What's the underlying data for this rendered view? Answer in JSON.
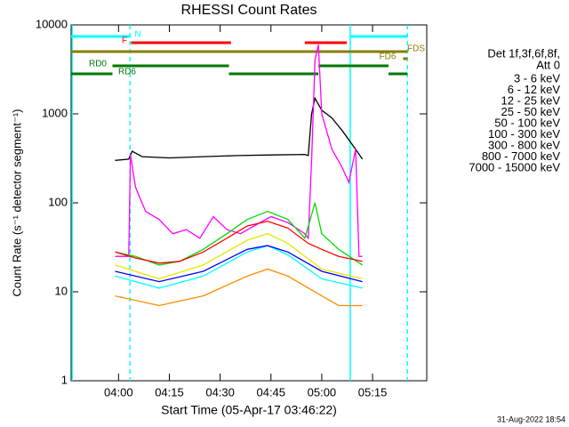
{
  "chart_data": {
    "type": "line",
    "title": "RHESSI Count Rates",
    "x_label": "Start Time (05-Apr-17 03:46:22)",
    "y_label": "Count Rate (s⁻¹ detector segment⁻¹)",
    "legend_title": [
      "Det 1f,3f,6f,8f,",
      "Att 0"
    ],
    "footer": "31-Aug-2022 18:54",
    "xlim": [
      226,
      331
    ],
    "xticks": [
      {
        "value": 240,
        "label": "04:00"
      },
      {
        "value": 255,
        "label": "04:15"
      },
      {
        "value": 270,
        "label": "04:30"
      },
      {
        "value": 285,
        "label": "04:45"
      },
      {
        "value": 300,
        "label": "05:00"
      },
      {
        "value": 315,
        "label": "05:15"
      }
    ],
    "ylim": [
      1,
      10000
    ],
    "yticks": [
      1,
      10,
      100,
      1000,
      10000
    ],
    "log_y": true,
    "series": [
      {
        "name": "3 - 6 keV",
        "color": "#000000",
        "x": [
          239,
          243,
          244,
          247,
          255,
          265,
          275,
          285,
          295,
          296,
          297,
          298,
          300,
          303,
          306,
          310,
          312
        ],
        "values": [
          300,
          310,
          380,
          330,
          320,
          330,
          340,
          345,
          350,
          340,
          1000,
          1500,
          1100,
          900,
          650,
          400,
          310
        ]
      },
      {
        "name": "6 - 12 keV",
        "color": "#ff00ff",
        "x": [
          239,
          243,
          243.5,
          245,
          248,
          252,
          256,
          260,
          264,
          268,
          272,
          276,
          280,
          285,
          290,
          295,
          296,
          297,
          298,
          299,
          300,
          303,
          306,
          308,
          310,
          311,
          312
        ],
        "values": [
          25,
          25,
          350,
          150,
          80,
          65,
          45,
          50,
          40,
          70,
          50,
          45,
          55,
          70,
          60,
          45,
          40,
          300,
          4000,
          6000,
          1000,
          400,
          250,
          170,
          400,
          25,
          25
        ]
      },
      {
        "name": "12 - 25 keV",
        "color": "#00dd00",
        "x": [
          239,
          245,
          252,
          258,
          265,
          272,
          278,
          284,
          290,
          295,
          298,
          300,
          305,
          312
        ],
        "values": [
          28,
          25,
          20,
          22,
          30,
          45,
          65,
          80,
          65,
          40,
          100,
          45,
          30,
          20
        ]
      },
      {
        "name": "25 - 50 keV",
        "color": "#00ffff",
        "x": [
          239,
          252,
          265,
          278,
          284,
          290,
          300,
          312
        ],
        "values": [
          15,
          11,
          15,
          28,
          33,
          26,
          14,
          11
        ]
      },
      {
        "name": "50 - 100 keV",
        "color": "#e6e600",
        "x": [
          239,
          252,
          265,
          278,
          284,
          290,
          300,
          312
        ],
        "values": [
          20,
          14,
          20,
          38,
          45,
          35,
          18,
          14
        ]
      },
      {
        "name": "100 - 300 keV",
        "color": "#ff0000",
        "x": [
          239,
          245,
          252,
          258,
          265,
          272,
          278,
          284,
          290,
          296,
          300,
          305,
          312
        ],
        "values": [
          28,
          24,
          21,
          22,
          28,
          40,
          55,
          62,
          52,
          35,
          30,
          25,
          22
        ]
      },
      {
        "name": "300 - 800 keV",
        "color": "#0000ff",
        "x": [
          239,
          252,
          265,
          278,
          284,
          290,
          300,
          312
        ],
        "values": [
          17,
          13,
          17,
          30,
          33,
          28,
          17,
          13
        ]
      },
      {
        "name": "800 - 7000 keV",
        "color": "#ff8c00",
        "x": [
          239,
          252,
          265,
          278,
          284,
          290,
          300,
          305,
          312
        ],
        "values": [
          9,
          7,
          9,
          15,
          18,
          15,
          9,
          7,
          7
        ]
      },
      {
        "name": "7000 - 15000 keV",
        "color": "#8b7d00",
        "x": [],
        "values": []
      }
    ],
    "vlines": [
      {
        "x": 226.3,
        "color": "#00ffff",
        "dashed": false
      },
      {
        "x": 308.4,
        "color": "#00ffff",
        "dashed": false
      },
      {
        "x": 243.4,
        "color": "#00ffff",
        "dashed": true
      },
      {
        "x": 325.3,
        "color": "#00ffff",
        "dashed": true
      }
    ],
    "flags": [
      {
        "name": "N",
        "color": "#00ffff",
        "segments": [
          [
            226,
            243.4
          ],
          [
            308.4,
            325.3
          ]
        ]
      },
      {
        "name": "F",
        "color": "#ff0000",
        "segments": [
          [
            243.7,
            273.2
          ],
          [
            295,
            307.4
          ]
        ]
      },
      {
        "name": "FDS",
        "color": "#8b7d00",
        "segments": [
          [
            226,
            325.3
          ]
        ]
      },
      {
        "name": "FD6",
        "color": "#8b7d00",
        "segments": [
          [
            324,
            325.3
          ]
        ]
      },
      {
        "name": "RD0",
        "color": "#007700",
        "segments": [
          [
            238.2,
            272.6
          ],
          [
            299,
            319.7
          ]
        ]
      },
      {
        "name": "RD6",
        "color": "#007700",
        "segments": [
          [
            226,
            238.2
          ],
          [
            272.6,
            299
          ],
          [
            319.7,
            325.3
          ]
        ]
      }
    ]
  }
}
